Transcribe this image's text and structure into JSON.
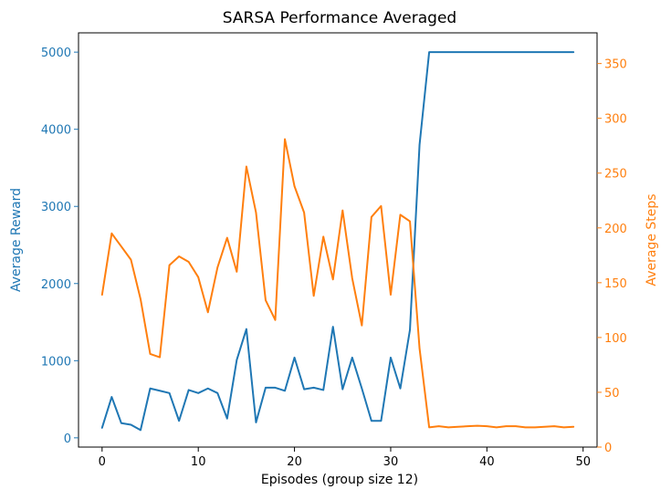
{
  "chart_data": {
    "type": "line",
    "title": "SARSA Performance Averaged",
    "xlabel": "Episodes (group size 12)",
    "ylabel_left": "Average Reward",
    "ylabel_right": "Average Steps",
    "xlim": [
      -2.45,
      51.45
    ],
    "ylim_left": [
      -120,
      5250
    ],
    "ylim_right": [
      0,
      378
    ],
    "x_ticks": [
      0,
      10,
      20,
      30,
      40,
      50
    ],
    "y_ticks_left": [
      0,
      1000,
      2000,
      3000,
      4000,
      5000
    ],
    "y_ticks_right": [
      0,
      50,
      100,
      150,
      200,
      250,
      300,
      350
    ],
    "colors": {
      "reward": "#1f77b4",
      "steps": "#ff7f0e",
      "text": "#000000"
    },
    "grid": false,
    "x": [
      0,
      1,
      2,
      3,
      4,
      5,
      6,
      7,
      8,
      9,
      10,
      11,
      12,
      13,
      14,
      15,
      16,
      17,
      18,
      19,
      20,
      21,
      22,
      23,
      24,
      25,
      26,
      27,
      28,
      29,
      30,
      31,
      32,
      33,
      34,
      35,
      36,
      37,
      38,
      39,
      40,
      41,
      42,
      43,
      44,
      45,
      46,
      47,
      48,
      49
    ],
    "series": [
      {
        "name": "Average Reward",
        "axis": "left",
        "color": "#1f77b4",
        "values": [
          130,
          530,
          190,
          170,
          100,
          640,
          610,
          580,
          220,
          620,
          580,
          640,
          580,
          250,
          1010,
          1410,
          200,
          650,
          650,
          610,
          1040,
          630,
          650,
          620,
          1440,
          630,
          1040,
          640,
          220,
          220,
          1040,
          640,
          1400,
          3800,
          5000,
          5000,
          5000,
          5000,
          5000,
          5000,
          5000,
          5000,
          5000,
          5000,
          5000,
          5000,
          5000,
          5000,
          5000,
          5000
        ]
      },
      {
        "name": "Average Steps",
        "axis": "right",
        "color": "#ff7f0e",
        "values": [
          139,
          195,
          183,
          171,
          135,
          85,
          82,
          166,
          174,
          169,
          155,
          123,
          164,
          191,
          160,
          256,
          214,
          134,
          116,
          281,
          238,
          214,
          138,
          192,
          153,
          216,
          154,
          111,
          210,
          220,
          139,
          212,
          206,
          90,
          18,
          19,
          18,
          18.5,
          19,
          19.5,
          19,
          18,
          19,
          19,
          18,
          18,
          18.5,
          19,
          18,
          18.5
        ]
      }
    ]
  }
}
